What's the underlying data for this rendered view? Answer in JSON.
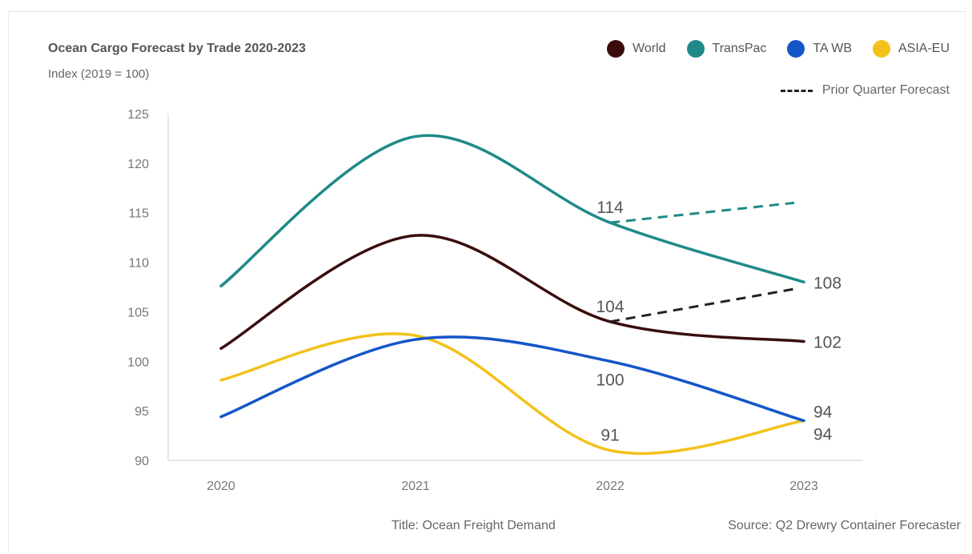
{
  "chart_data": {
    "type": "line",
    "title": "Ocean Cargo Forecast by Trade 2020-2023",
    "subtitle": "Index (2019 = 100)",
    "x": [
      "2020",
      "2021",
      "2022",
      "2023"
    ],
    "ylim": [
      90,
      125
    ],
    "yticks": [
      90,
      95,
      100,
      105,
      110,
      115,
      120,
      125
    ],
    "grid": false,
    "legend_placement": "top-right",
    "series": [
      {
        "name": "World",
        "color": "#3a0d0d",
        "values": [
          101.3,
          112.7,
          104,
          102
        ]
      },
      {
        "name": "TransPac",
        "color": "#1f8a88",
        "values": [
          107.6,
          122.7,
          114,
          108
        ]
      },
      {
        "name": "TA WB",
        "color": "#1456c8",
        "values": [
          94.4,
          102.2,
          100,
          94
        ]
      },
      {
        "name": "ASIA-EU",
        "color": "#f2c21a",
        "values": [
          98.1,
          102.6,
          91,
          94
        ]
      }
    ],
    "prior_quarter_forecast": {
      "label": "Prior Quarter Forecast",
      "lines": [
        {
          "series": "TransPac",
          "x": [
            "2022",
            "2023"
          ],
          "values": [
            114,
            116
          ]
        },
        {
          "series": "World",
          "x": [
            "2022",
            "2023"
          ],
          "values": [
            104,
            107.3
          ]
        }
      ]
    },
    "data_labels": [
      {
        "x": "2022",
        "value": 114,
        "text": "114"
      },
      {
        "x": "2022",
        "value": 104,
        "text": "104"
      },
      {
        "x": "2022",
        "value": 100,
        "text": "100"
      },
      {
        "x": "2022",
        "value": 91,
        "text": "91"
      },
      {
        "x": "2023",
        "value": 108,
        "text": "108"
      },
      {
        "x": "2023",
        "value": 102,
        "text": "102"
      },
      {
        "x": "2023",
        "value": 94,
        "text": "94"
      },
      {
        "x": "2023",
        "value": 94,
        "text": "94"
      }
    ]
  },
  "footer": {
    "title": "Title: Ocean Freight Demand",
    "source": "Source: Q2 Drewry Container Forecaster"
  }
}
